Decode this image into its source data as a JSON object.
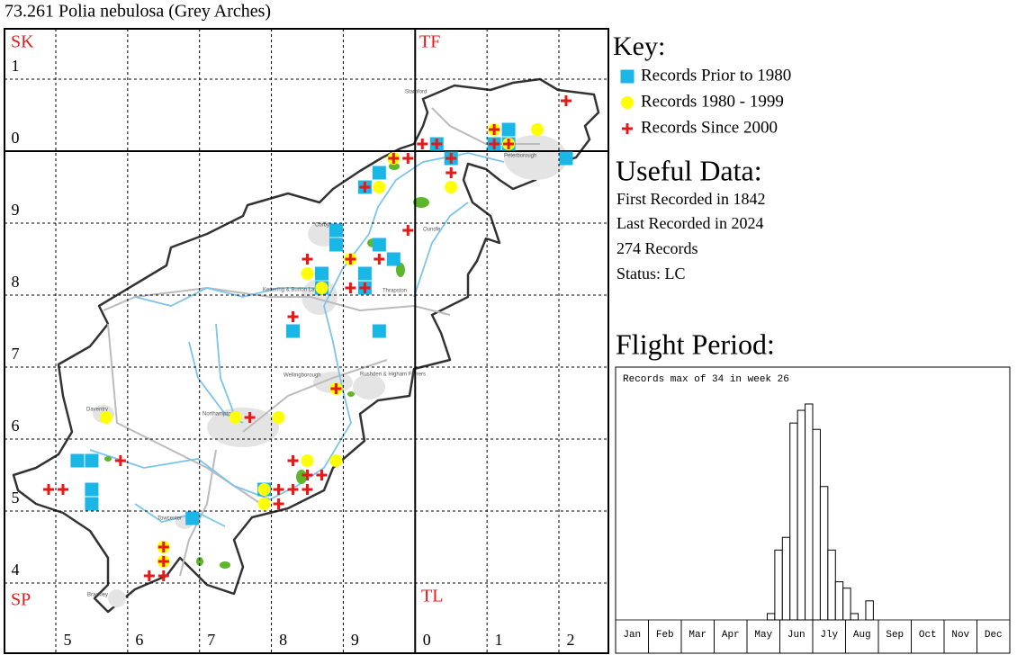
{
  "title": "73.261 Polia nebulosa (Grey Arches)",
  "map": {
    "square_labels": [
      "SK",
      "TF",
      "SP",
      "TL"
    ],
    "towns": [
      "Stamford",
      "Peterborough",
      "Corby",
      "Oundle",
      "Kettering & Burton Latimer",
      "Thrapston",
      "Wellingborough",
      "Rushden & Higham Ferrers",
      "Daventry",
      "Northampton",
      "Towcester",
      "Brackley"
    ],
    "eticks": [
      {
        "value": 450,
        "label": "5"
      },
      {
        "value": 460,
        "label": "6"
      },
      {
        "value": 470,
        "label": "7"
      },
      {
        "value": 480,
        "label": "8"
      },
      {
        "value": 490,
        "label": "9"
      },
      {
        "value": 500,
        "label": "0"
      },
      {
        "value": 510,
        "label": "1"
      },
      {
        "value": 520,
        "label": "2"
      }
    ],
    "nticks": [
      {
        "value": 310,
        "label": "1"
      },
      {
        "value": 300,
        "label": "0"
      },
      {
        "value": 290,
        "label": "9"
      },
      {
        "value": 280,
        "label": "8"
      },
      {
        "value": 270,
        "label": "7"
      },
      {
        "value": 260,
        "label": "6"
      },
      {
        "value": 250,
        "label": "5"
      },
      {
        "value": 240,
        "label": "4"
      }
    ],
    "series": [
      {
        "name": "Records Prior to 1980",
        "color": "#19b6e6",
        "shape": "square",
        "e": [
          453,
          455,
          455,
          455,
          469,
          479,
          483,
          489,
          489,
          487,
          487,
          495,
          495,
          497,
          493,
          493,
          495,
          503,
          505,
          513,
          513,
          511,
          521,
          493
        ],
        "n": [
          257,
          257,
          253,
          251,
          249,
          253,
          275,
          289,
          287,
          283,
          281,
          297,
          287,
          285,
          283,
          281,
          275,
          301,
          299,
          303,
          301,
          301,
          299,
          295
        ]
      },
      {
        "name": "Records 1980 - 1999",
        "color": "#ffff00",
        "shape": "circle",
        "e": [
          457,
          475,
          481,
          485,
          487,
          495,
          505,
          517,
          489,
          485,
          479,
          479,
          489,
          465,
          465,
          511,
          513,
          497,
          491
        ],
        "n": [
          263,
          263,
          263,
          283,
          281,
          295,
          295,
          303,
          257,
          257,
          253,
          251,
          267,
          245,
          243,
          303,
          301,
          299,
          285
        ]
      },
      {
        "name": "Records Since 2000",
        "color": "#e41a1a",
        "shape": "cross",
        "e": [
          449,
          451,
          459,
          463,
          465,
          465,
          465,
          477,
          481,
          481,
          483,
          485,
          485,
          487,
          483,
          489,
          483,
          485,
          491,
          495,
          491,
          493,
          493,
          499,
          497,
          499,
          501,
          503,
          505,
          505,
          511,
          511,
          513,
          521
        ],
        "n": [
          253,
          253,
          257,
          241,
          241,
          245,
          243,
          263,
          253,
          251,
          253,
          253,
          255,
          255,
          257,
          267,
          277,
          285,
          285,
          285,
          281,
          281,
          295,
          289,
          299,
          299,
          301,
          301,
          299,
          297,
          303,
          301,
          301,
          307
        ]
      }
    ]
  },
  "key_title": "Key:",
  "useful_data": {
    "title": "Useful Data:",
    "lines": [
      "First Recorded in 1842",
      "Last Recorded in 2024",
      "274 Records",
      "Status: LC"
    ]
  },
  "chart_data": {
    "type": "histogram",
    "title": "Flight Period:",
    "note": "Records max of 34 in week 26",
    "months": [
      "Jan",
      "Feb",
      "Mar",
      "Apr",
      "May",
      "Jun",
      "Jly",
      "Aug",
      "Sep",
      "Oct",
      "Nov",
      "Dec"
    ],
    "weeks": [
      21,
      22,
      23,
      24,
      25,
      26,
      27,
      28,
      29,
      30,
      31,
      32,
      34
    ],
    "values": [
      1,
      11,
      13,
      31,
      33,
      34,
      30,
      21,
      11,
      6,
      5,
      1,
      3
    ]
  }
}
